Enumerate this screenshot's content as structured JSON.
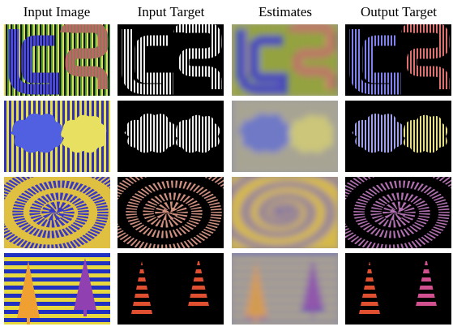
{
  "columns": [
    "Input Image",
    "Input Target",
    "Estimates",
    "Output Target"
  ]
}
